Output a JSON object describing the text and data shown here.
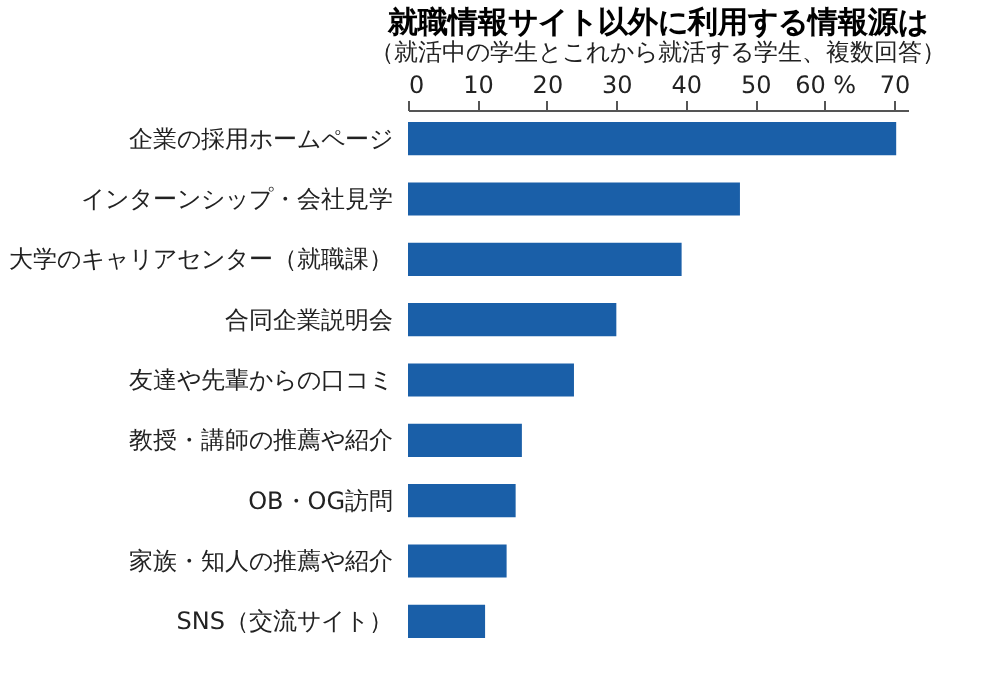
{
  "chart_data": {
    "type": "bar",
    "orientation": "horizontal",
    "title": "就職情報サイト以外に利用する情報源は",
    "subtitle": "（就活中の学生とこれから就活する学生、複数回答）",
    "categories": [
      "企業の採用ホームページ",
      "インターンシップ・会社見学",
      "大学のキャリアセンター（就職課）",
      "合同企業説明会",
      "友達や先輩からの口コミ",
      "教授・講師の推薦や紹介",
      "OB・OG訪問",
      "家族・知人の推薦や紹介",
      "SNS（交流サイト）"
    ],
    "values": [
      70.3,
      47.8,
      39.4,
      30.0,
      23.9,
      16.4,
      15.5,
      14.2,
      11.1
    ],
    "color": "#1a5fa8",
    "xlim": [
      0,
      72
    ],
    "xticks": [
      0,
      10,
      20,
      30,
      40,
      50,
      {
        "value": 60,
        "label": "60 %"
      },
      70
    ],
    "grid": false
  }
}
